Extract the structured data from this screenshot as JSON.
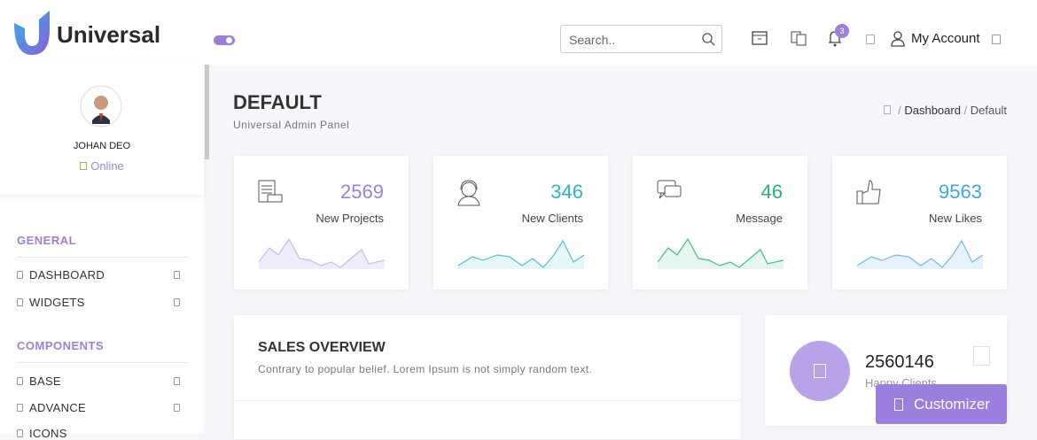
{
  "header": {
    "brand": "Universal",
    "search_placeholder": "Search..",
    "notification_count": 3,
    "account": "My Account"
  },
  "sidebar": {
    "user_name": "JOHAN DEO",
    "status": "Online",
    "sections": [
      {
        "title": "GENERAL",
        "items": [
          "DASHBOARD",
          "WIDGETS"
        ]
      },
      {
        "title": "COMPONENTS",
        "items": [
          "BASE",
          "ADVANCE",
          "ICONS"
        ]
      }
    ]
  },
  "page": {
    "title": "DEFAULT",
    "subtitle": "Universal Admin Panel",
    "breadcrumb": [
      "Dashboard",
      "Default"
    ]
  },
  "stats": [
    {
      "value": 2569,
      "label": "New Projects"
    },
    {
      "value": 346,
      "label": "New Clients"
    },
    {
      "value": 46,
      "label": "Message"
    },
    {
      "value": 9563,
      "label": "New Likes"
    }
  ],
  "sales": {
    "title": "SALES OVERVIEW",
    "subtitle": "Contrary to popular belief. Lorem Ipsum is not simply random text."
  },
  "clients": {
    "value": 2560146,
    "label": "Happy Clients"
  },
  "customizer": "Customizer"
}
